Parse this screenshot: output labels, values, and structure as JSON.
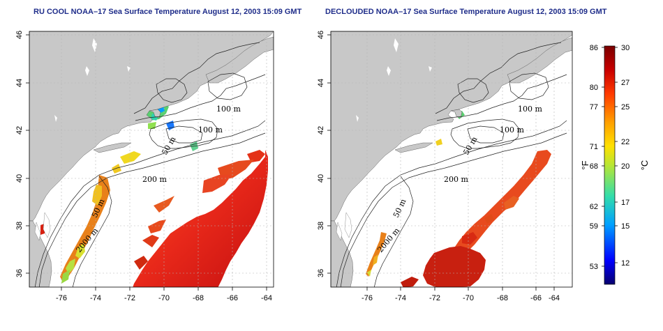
{
  "maps": [
    {
      "title": "RU COOL NOAA–17 Sea Surface Temperature August 12, 2003 15:09 GMT",
      "lon_ticks": [
        "-76",
        "-74",
        "-72",
        "-70",
        "-68",
        "-66",
        "-64"
      ],
      "lat_ticks": [
        "36",
        "38",
        "40",
        "42",
        "44",
        "46"
      ],
      "contour_labels": [
        "100 m",
        "100 m",
        "50 m",
        "200 m",
        "50 m",
        "2000 m"
      ]
    },
    {
      "title": "DECLOUDED NOAA–17 Sea Surface Temperature August 12, 2003 15:09 GMT",
      "lon_ticks": [
        "-76",
        "-74",
        "-72",
        "-70",
        "-68",
        "-66",
        "-64"
      ],
      "lat_ticks": [
        "36",
        "38",
        "40",
        "42",
        "44",
        "46"
      ],
      "contour_labels": [
        "100 m",
        "100 m",
        "50 m",
        "200 m",
        "50 m",
        "2000 m"
      ]
    }
  ],
  "colorbar": {
    "fahrenheit_label": "°F",
    "celsius_label": "°C",
    "fahrenheit_ticks": [
      "86",
      "80",
      "77",
      "71",
      "68",
      "62",
      "59",
      "53"
    ],
    "celsius_ticks": [
      "30",
      "27",
      "25",
      "22",
      "20",
      "17",
      "15",
      "12"
    ],
    "colors": [
      "#08006e",
      "#0000ff",
      "#00a0ff",
      "#33ddaa",
      "#b8e634",
      "#ffe000",
      "#ffa000",
      "#ff3a00",
      "#c80000",
      "#7a0000"
    ]
  },
  "colors": {
    "land": "#c8c8c8",
    "ocean_clear": "#ffffff",
    "sst_warm": "#e83018",
    "title": "#1f2d8a"
  }
}
